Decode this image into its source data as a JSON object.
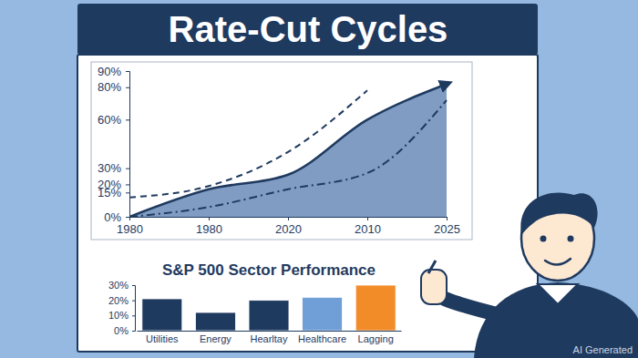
{
  "chart_data": [
    {
      "type": "line",
      "title": "Rate-Cut Cycles",
      "categories": [
        "1980",
        "1980",
        "2020",
        "2010",
        "2025"
      ],
      "series": [
        {
          "type": "area",
          "color": "#1f3a5f",
          "line_style": "solid",
          "values": [
            0,
            17,
            26,
            60,
            82
          ]
        },
        {
          "type": "line",
          "color": "#1f3a5f",
          "line_style": "dashed",
          "values": [
            12,
            19,
            40,
            78,
            null
          ]
        },
        {
          "type": "line",
          "color": "#1f3a5f",
          "line_style": "dashdot",
          "values": [
            0,
            6,
            17,
            27,
            72
          ]
        }
      ],
      "ylim": [
        0,
        90
      ],
      "yticks": [
        {
          "value": 0,
          "label": "0%"
        },
        {
          "value": 15,
          "label": "15%"
        },
        {
          "value": 20,
          "label": "20%"
        },
        {
          "value": 30,
          "label": "30%"
        },
        {
          "value": 60,
          "label": "60%"
        },
        {
          "value": 80,
          "label": "80%"
        },
        {
          "value": 90,
          "label": "90%"
        }
      ],
      "grid": false
    },
    {
      "type": "bar",
      "title": "S&P 500 Sector Performance",
      "categories": [
        "Utilities",
        "Energy",
        "Hearltay",
        "Healthcare",
        "Lagging"
      ],
      "values": [
        21,
        12,
        20,
        22,
        30
      ],
      "colors": [
        "#1f3a5f",
        "#1f3a5f",
        "#1f3a5f",
        "#6f9fd6",
        "#f28c28"
      ],
      "ylim": [
        0,
        30
      ],
      "yticks": [
        {
          "value": 0,
          "label": "0%"
        },
        {
          "value": 10,
          "label": "10%"
        },
        {
          "value": 20,
          "label": "20%"
        },
        {
          "value": 30,
          "label": "30%"
        }
      ],
      "grid": false
    }
  ],
  "watermark": "AI Generated"
}
